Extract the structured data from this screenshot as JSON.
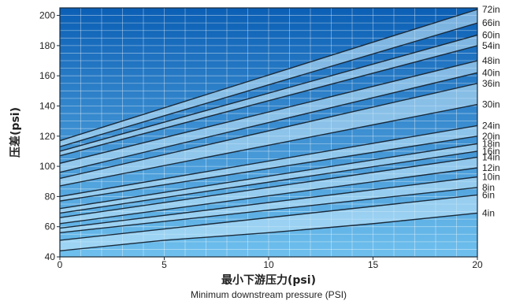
{
  "chart_data": {
    "type": "line",
    "xlabel": "最小下游压力(psi)",
    "xlabel_secondary": "Minimum downstream pressure (PSI)",
    "ylabel": "压差(psi)",
    "xlim": [
      0,
      20
    ],
    "ylim": [
      40,
      205
    ],
    "x_ticks": [
      "0",
      "5",
      "10",
      "15",
      "20"
    ],
    "y_ticks": [
      "40",
      "60",
      "80",
      "100",
      "120",
      "140",
      "160",
      "180",
      "200"
    ],
    "x_tick_values": [
      0,
      5,
      10,
      15,
      20
    ],
    "y_tick_values": [
      40,
      60,
      80,
      100,
      120,
      140,
      160,
      180,
      200
    ],
    "grid": true,
    "colors": {
      "background_top": "#0b5fb5",
      "background_bottom": "#6fc0ee",
      "band": "#bfe3f8",
      "line": "#1a2a3a"
    },
    "series": [
      {
        "name": "4in",
        "x": [
          0,
          5,
          10,
          15,
          20
        ],
        "y": [
          44,
          51,
          56,
          62,
          69
        ]
      },
      {
        "name": "6in",
        "x": [
          0,
          20
        ],
        "y": [
          51,
          81
        ]
      },
      {
        "name": "8in",
        "x": [
          0,
          20
        ],
        "y": [
          56,
          86
        ]
      },
      {
        "name": "10in",
        "x": [
          0,
          20
        ],
        "y": [
          59,
          93
        ]
      },
      {
        "name": "12in",
        "x": [
          0,
          20
        ],
        "y": [
          62,
          99
        ]
      },
      {
        "name": "14in",
        "x": [
          0,
          20
        ],
        "y": [
          66,
          106
        ]
      },
      {
        "name": "16in",
        "x": [
          0,
          20
        ],
        "y": [
          69,
          110
        ]
      },
      {
        "name": "18in",
        "x": [
          0,
          20
        ],
        "y": [
          72,
          115
        ]
      },
      {
        "name": "20in",
        "x": [
          0,
          20
        ],
        "y": [
          77,
          120
        ]
      },
      {
        "name": "24in",
        "x": [
          0,
          20
        ],
        "y": [
          80,
          127
        ]
      },
      {
        "name": "30in",
        "x": [
          0,
          20
        ],
        "y": [
          87,
          141
        ]
      },
      {
        "name": "36in",
        "x": [
          0,
          20
        ],
        "y": [
          92,
          155
        ]
      },
      {
        "name": "40in",
        "x": [
          0,
          20
        ],
        "y": [
          96,
          162
        ]
      },
      {
        "name": "48in",
        "x": [
          0,
          20
        ],
        "y": [
          102,
          170
        ]
      },
      {
        "name": "54in",
        "x": [
          0,
          20
        ],
        "y": [
          107,
          180
        ]
      },
      {
        "name": "60in",
        "x": [
          0,
          20
        ],
        "y": [
          110,
          187
        ]
      },
      {
        "name": "66in",
        "x": [
          0,
          20
        ],
        "y": [
          113,
          195
        ]
      },
      {
        "name": "72in",
        "x": [
          0,
          20
        ],
        "y": [
          117,
          204
        ]
      }
    ]
  }
}
